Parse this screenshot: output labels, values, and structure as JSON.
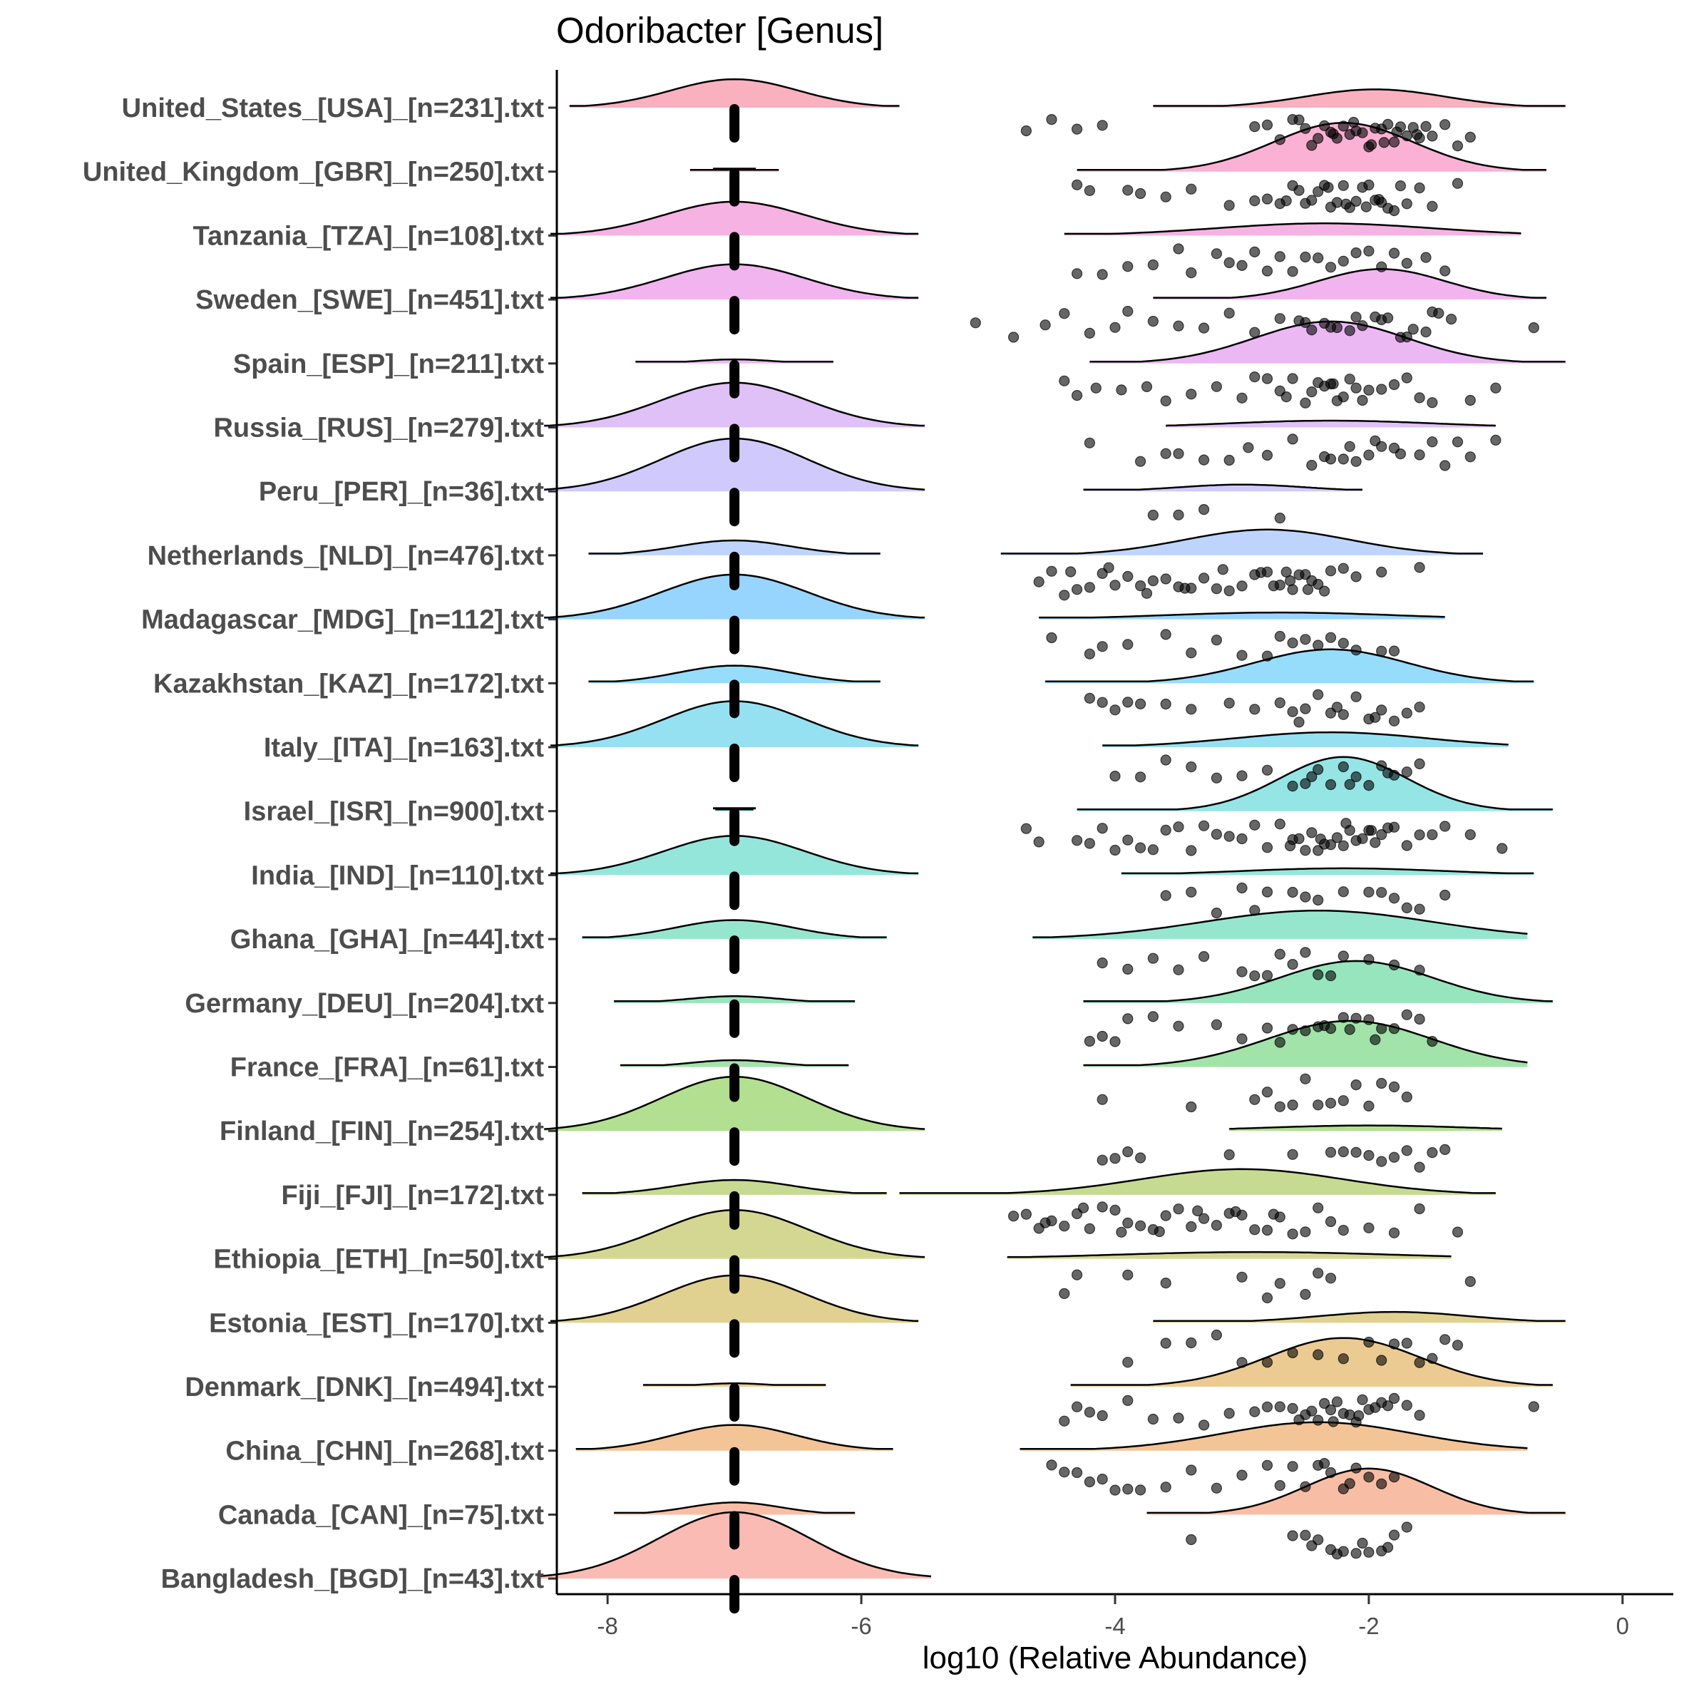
{
  "chart_data": {
    "type": "raincloud",
    "title": "Odoribacter [Genus]",
    "xlabel": "log10 (Relative Abundance)",
    "ylabel": "",
    "xlim": [
      -8.4,
      0.4
    ],
    "xticks": [
      -8,
      -6,
      -4,
      -2,
      0
    ],
    "grid": false,
    "legend": "none",
    "categories": [
      "United_States_[USA]_[n=231].txt",
      "United_Kingdom_[GBR]_[n=250].txt",
      "Tanzania_[TZA]_[n=108].txt",
      "Sweden_[SWE]_[n=451].txt",
      "Spain_[ESP]_[n=211].txt",
      "Russia_[RUS]_[n=279].txt",
      "Peru_[PER]_[n=36].txt",
      "Netherlands_[NLD]_[n=476].txt",
      "Madagascar_[MDG]_[n=112].txt",
      "Kazakhstan_[KAZ]_[n=172].txt",
      "Italy_[ITA]_[n=163].txt",
      "Israel_[ISR]_[n=900].txt",
      "India_[IND]_[n=110].txt",
      "Ghana_[GHA]_[n=44].txt",
      "Germany_[DEU]_[n=204].txt",
      "France_[FRA]_[n=61].txt",
      "Finland_[FIN]_[n=254].txt",
      "Fiji_[FJI]_[n=172].txt",
      "Ethiopia_[ETH]_[n=50].txt",
      "Estonia_[EST]_[n=170].txt",
      "Denmark_[DNK]_[n=494].txt",
      "China_[CHN]_[n=268].txt",
      "Canada_[CAN]_[n=75].txt",
      "Bangladesh_[BGD]_[n=43].txt"
    ],
    "colors": [
      "#F8A2B4",
      "#F9A3CC",
      "#F4A5DE",
      "#EEA7EC",
      "#E7ABF2",
      "#D9B5F6",
      "#C8C1FB",
      "#B4CDFC",
      "#86CEFE",
      "#84D6FA",
      "#83DCEE",
      "#83E0E0",
      "#83E2D4",
      "#84E2C4",
      "#84E1B2",
      "#90DE9A",
      "#A6D97E",
      "#BCD47E",
      "#CDD07E",
      "#DAC97E",
      "#E7C27E",
      "#F0BA84",
      "#F7B395",
      "#F8AFA6"
    ],
    "series": [
      {
        "zero_density_height": 0.42,
        "zero_density_halfwidth": 1.3,
        "nonzero_mean": -1.95,
        "nonzero_sd": 0.55,
        "nonzero_range": [
          -3.7,
          -0.45
        ],
        "nonzero_density_height": 0.27,
        "points": [
          -4.7,
          -4.5,
          -4.3,
          -4.1,
          -2.9,
          -2.8,
          -2.7,
          -2.6,
          -2.55,
          -2.5,
          -2.4,
          -2.35,
          -2.3,
          -2.25,
          -2.2,
          -2.15,
          -2.1,
          -2.05,
          -2.0,
          -1.95,
          -1.9,
          -1.85,
          -1.8,
          -1.75,
          -1.7,
          -1.65,
          -1.6,
          -1.5,
          -1.4,
          -1.3,
          -1.2,
          -2.45,
          -2.28,
          -2.12,
          -1.98,
          -1.88,
          -1.78,
          -1.62,
          -1.55
        ]
      },
      {
        "zero_density_height": 0.0,
        "zero_density_halfwidth": 0.35,
        "nonzero_mean": -2.2,
        "nonzero_sd": 0.55,
        "nonzero_range": [
          -4.3,
          -0.6
        ],
        "nonzero_density_height": 0.72,
        "points": [
          -4.3,
          -4.2,
          -3.9,
          -3.8,
          -3.6,
          -3.4,
          -3.1,
          -2.9,
          -2.8,
          -2.7,
          -2.6,
          -2.5,
          -2.45,
          -2.4,
          -2.35,
          -2.3,
          -2.25,
          -2.2,
          -2.15,
          -2.1,
          -2.05,
          -2.0,
          -1.95,
          -1.9,
          -1.85,
          -1.8,
          -1.75,
          -1.7,
          -1.6,
          -1.5,
          -1.3,
          -2.65,
          -2.55,
          -2.32,
          -2.18,
          -2.02,
          -1.92
        ]
      },
      {
        "zero_density_height": 0.5,
        "zero_density_halfwidth": 1.45,
        "nonzero_mean": -2.35,
        "nonzero_sd": 0.85,
        "nonzero_range": [
          -4.4,
          -0.8
        ],
        "nonzero_density_height": 0.18,
        "points": [
          -4.3,
          -4.1,
          -3.9,
          -3.7,
          -3.5,
          -3.4,
          -3.2,
          -3.1,
          -3.0,
          -2.9,
          -2.8,
          -2.7,
          -2.6,
          -2.5,
          -2.4,
          -2.3,
          -2.2,
          -2.1,
          -2.0,
          -1.9,
          -1.8,
          -1.7,
          -1.55,
          -1.4
        ]
      },
      {
        "zero_density_height": 0.52,
        "zero_density_halfwidth": 1.45,
        "nonzero_mean": -1.9,
        "nonzero_sd": 0.5,
        "nonzero_range": [
          -3.7,
          -0.6
        ],
        "nonzero_density_height": 0.45,
        "points": [
          -5.1,
          -4.8,
          -4.55,
          -4.4,
          -4.2,
          -4.0,
          -3.9,
          -3.7,
          -3.5,
          -3.3,
          -3.1,
          -2.9,
          -2.7,
          -2.55,
          -2.45,
          -2.35,
          -2.25,
          -2.15,
          -2.05,
          -1.95,
          -1.85,
          -1.75,
          -1.65,
          -1.55,
          -1.45,
          -1.35,
          -0.7,
          -2.5,
          -2.3,
          -2.1,
          -1.9,
          -1.7,
          -1.5
        ]
      },
      {
        "zero_density_height": 0.06,
        "zero_density_halfwidth": 0.78,
        "nonzero_mean": -2.3,
        "nonzero_sd": 0.6,
        "nonzero_range": [
          -4.2,
          -0.45
        ],
        "nonzero_density_height": 0.62,
        "points": [
          -4.4,
          -4.3,
          -4.15,
          -3.95,
          -3.75,
          -3.6,
          -3.4,
          -3.2,
          -3.0,
          -2.9,
          -2.8,
          -2.7,
          -2.6,
          -2.5,
          -2.45,
          -2.4,
          -2.35,
          -2.3,
          -2.25,
          -2.2,
          -2.15,
          -2.1,
          -2.0,
          -1.9,
          -1.8,
          -1.7,
          -1.6,
          -1.5,
          -1.2,
          -1.0,
          -2.65,
          -2.28,
          -2.05
        ]
      },
      {
        "zero_density_height": 0.66,
        "zero_density_halfwidth": 1.5,
        "nonzero_mean": -2.3,
        "nonzero_sd": 0.8,
        "nonzero_range": [
          -3.6,
          -1.0
        ],
        "nonzero_density_height": 0.1,
        "points": [
          -4.2,
          -3.8,
          -3.6,
          -3.5,
          -3.3,
          -3.1,
          -2.95,
          -2.8,
          -2.6,
          -2.45,
          -2.3,
          -2.2,
          -2.1,
          -2.0,
          -1.9,
          -1.8,
          -1.6,
          -1.5,
          -1.4,
          -1.3,
          -1.2,
          -1.0,
          -2.35,
          -2.15,
          -1.95,
          -1.75
        ]
      },
      {
        "zero_density_height": 0.78,
        "zero_density_halfwidth": 1.5,
        "nonzero_mean": -3.0,
        "nonzero_sd": 0.5,
        "nonzero_range": [
          -4.25,
          -2.05
        ],
        "nonzero_density_height": 0.1,
        "points": [
          -3.7,
          -3.5,
          -3.3,
          -2.7
        ]
      },
      {
        "zero_density_height": 0.22,
        "zero_density_halfwidth": 1.15,
        "nonzero_mean": -2.8,
        "nonzero_sd": 0.65,
        "nonzero_range": [
          -4.9,
          -1.1
        ],
        "nonzero_density_height": 0.38,
        "points": [
          -4.6,
          -4.5,
          -4.4,
          -4.3,
          -4.2,
          -4.1,
          -4.0,
          -3.9,
          -3.8,
          -3.7,
          -3.6,
          -3.5,
          -3.4,
          -3.3,
          -3.2,
          -3.1,
          -3.0,
          -2.9,
          -2.8,
          -2.75,
          -2.7,
          -2.65,
          -2.6,
          -2.55,
          -2.5,
          -2.45,
          -2.4,
          -2.35,
          -2.3,
          -2.2,
          -2.1,
          -1.9,
          -1.6,
          -4.35,
          -4.05,
          -3.75,
          -3.45,
          -3.15,
          -2.85,
          -2.62,
          -2.48
        ]
      },
      {
        "zero_density_height": 0.66,
        "zero_density_halfwidth": 1.5,
        "nonzero_mean": -2.7,
        "nonzero_sd": 0.9,
        "nonzero_range": [
          -4.6,
          -1.4
        ],
        "nonzero_density_height": 0.1,
        "points": [
          -4.5,
          -4.2,
          -4.1,
          -3.9,
          -3.6,
          -3.4,
          -3.2,
          -3.0,
          -2.8,
          -2.7,
          -2.6,
          -2.5,
          -2.4,
          -2.3,
          -2.2,
          -2.1,
          -1.9,
          -1.8
        ]
      },
      {
        "zero_density_height": 0.26,
        "zero_density_halfwidth": 1.15,
        "nonzero_mean": -2.3,
        "nonzero_sd": 0.6,
        "nonzero_range": [
          -4.55,
          -0.7
        ],
        "nonzero_density_height": 0.5,
        "points": [
          -4.2,
          -4.1,
          -4.0,
          -3.9,
          -3.8,
          -3.6,
          -3.4,
          -3.1,
          -2.9,
          -2.7,
          -2.6,
          -2.5,
          -2.4,
          -2.3,
          -2.2,
          -2.1,
          -2.0,
          -1.9,
          -1.8,
          -1.7,
          -1.6,
          -2.55,
          -2.25,
          -1.95
        ]
      },
      {
        "zero_density_height": 0.68,
        "zero_density_halfwidth": 1.45,
        "nonzero_mean": -2.3,
        "nonzero_sd": 0.75,
        "nonzero_range": [
          -4.1,
          -0.9
        ],
        "nonzero_density_height": 0.22,
        "points": [
          -4.0,
          -3.8,
          -3.6,
          -3.4,
          -3.2,
          -3.0,
          -2.8,
          -2.6,
          -2.5,
          -2.4,
          -2.3,
          -2.2,
          -2.1,
          -2.0,
          -1.9,
          -1.8,
          -1.7,
          -1.6,
          -2.45,
          -2.15,
          -1.85
        ]
      },
      {
        "zero_density_height": 0.0,
        "zero_density_halfwidth": 0.15,
        "nonzero_mean": -2.2,
        "nonzero_sd": 0.5,
        "nonzero_range": [
          -4.3,
          -0.55
        ],
        "nonzero_density_height": 0.8,
        "points": [
          -4.7,
          -4.6,
          -4.3,
          -4.2,
          -4.1,
          -4.0,
          -3.9,
          -3.8,
          -3.7,
          -3.6,
          -3.5,
          -3.4,
          -3.3,
          -3.2,
          -3.1,
          -3.0,
          -2.9,
          -2.8,
          -2.7,
          -2.6,
          -2.55,
          -2.5,
          -2.45,
          -2.4,
          -2.35,
          -2.3,
          -2.25,
          -2.2,
          -2.15,
          -2.1,
          -2.05,
          -2.0,
          -1.95,
          -1.9,
          -1.85,
          -1.8,
          -1.7,
          -1.6,
          -1.5,
          -1.4,
          -1.2,
          -0.95,
          -2.62,
          -2.38,
          -2.18,
          -1.98
        ]
      },
      {
        "zero_density_height": 0.58,
        "zero_density_halfwidth": 1.45,
        "nonzero_mean": -2.2,
        "nonzero_sd": 0.8,
        "nonzero_range": [
          -3.95,
          -0.7
        ],
        "nonzero_density_height": 0.1,
        "points": [
          -3.6,
          -3.4,
          -3.2,
          -3.0,
          -2.9,
          -2.8,
          -2.6,
          -2.5,
          -2.4,
          -2.2,
          -2.0,
          -1.9,
          -1.8,
          -1.7,
          -1.6,
          -1.4
        ]
      },
      {
        "zero_density_height": 0.28,
        "zero_density_halfwidth": 1.2,
        "nonzero_mean": -2.4,
        "nonzero_sd": 0.9,
        "nonzero_range": [
          -4.65,
          -0.75
        ],
        "nonzero_density_height": 0.42,
        "points": [
          -4.1,
          -3.9,
          -3.7,
          -3.5,
          -3.3,
          -3.0,
          -2.9,
          -2.8,
          -2.7,
          -2.6,
          -2.5,
          -2.4,
          -2.3,
          -2.2,
          -2.0,
          -1.8,
          -1.6
        ]
      },
      {
        "zero_density_height": 0.1,
        "zero_density_halfwidth": 0.95,
        "nonzero_mean": -2.1,
        "nonzero_sd": 0.6,
        "nonzero_range": [
          -4.25,
          -0.55
        ],
        "nonzero_density_height": 0.62,
        "points": [
          -4.2,
          -4.1,
          -4.0,
          -3.9,
          -3.7,
          -3.5,
          -3.2,
          -3.0,
          -2.8,
          -2.7,
          -2.6,
          -2.5,
          -2.4,
          -2.3,
          -2.2,
          -2.1,
          -2.0,
          -1.9,
          -1.8,
          -1.7,
          -1.6,
          -1.5,
          -2.35,
          -2.15,
          -1.95
        ]
      },
      {
        "zero_density_height": 0.1,
        "zero_density_halfwidth": 0.9,
        "nonzero_mean": -2.15,
        "nonzero_sd": 0.65,
        "nonzero_range": [
          -4.25,
          -0.75
        ],
        "nonzero_density_height": 0.68,
        "points": [
          -4.1,
          -3.4,
          -2.9,
          -2.8,
          -2.7,
          -2.6,
          -2.5,
          -2.4,
          -2.3,
          -2.2,
          -2.1,
          -2.0,
          -1.9,
          -1.8,
          -1.7
        ]
      },
      {
        "zero_density_height": 0.8,
        "zero_density_halfwidth": 1.5,
        "nonzero_mean": -2.0,
        "nonzero_sd": 0.8,
        "nonzero_range": [
          -3.1,
          -0.95
        ],
        "nonzero_density_height": 0.08,
        "points": [
          -4.1,
          -4.0,
          -3.9,
          -3.8,
          -3.1,
          -2.6,
          -2.3,
          -2.2,
          -2.1,
          -2.0,
          -1.9,
          -1.8,
          -1.7,
          -1.6,
          -1.5,
          -1.4
        ]
      },
      {
        "zero_density_height": 0.22,
        "zero_density_halfwidth": 1.2,
        "nonzero_mean": -3.0,
        "nonzero_sd": 0.8,
        "nonzero_range": [
          -5.7,
          -1.0
        ],
        "nonzero_density_height": 0.38,
        "points": [
          -4.8,
          -4.7,
          -4.6,
          -4.5,
          -4.4,
          -4.3,
          -4.2,
          -4.1,
          -4.0,
          -3.9,
          -3.8,
          -3.7,
          -3.6,
          -3.5,
          -3.4,
          -3.3,
          -3.2,
          -3.1,
          -3.0,
          -2.9,
          -2.8,
          -2.7,
          -2.6,
          -2.5,
          -2.4,
          -2.3,
          -2.2,
          -2.0,
          -1.8,
          -1.6,
          -1.3,
          -4.55,
          -4.25,
          -3.95,
          -3.65,
          -3.35,
          -3.05,
          -2.75
        ]
      },
      {
        "zero_density_height": 0.72,
        "zero_density_halfwidth": 1.5,
        "nonzero_mean": -2.9,
        "nonzero_sd": 1.1,
        "nonzero_range": [
          -4.85,
          -1.35
        ],
        "nonzero_density_height": 0.1,
        "points": [
          -4.4,
          -4.3,
          -3.9,
          -3.6,
          -3.0,
          -2.8,
          -2.7,
          -2.5,
          -2.4,
          -2.3,
          -1.2
        ]
      },
      {
        "zero_density_height": 0.7,
        "zero_density_halfwidth": 1.45,
        "nonzero_mean": -1.8,
        "nonzero_sd": 0.6,
        "nonzero_range": [
          -3.7,
          -0.45
        ],
        "nonzero_density_height": 0.16,
        "points": [
          -3.9,
          -3.6,
          -3.4,
          -3.2,
          -3.0,
          -2.8,
          -2.6,
          -2.4,
          -2.2,
          -2.0,
          -1.9,
          -1.8,
          -1.7,
          -1.6,
          -1.5,
          -1.4,
          -1.3
        ]
      },
      {
        "zero_density_height": 0.05,
        "zero_density_halfwidth": 0.72,
        "nonzero_mean": -2.2,
        "nonzero_sd": 0.6,
        "nonzero_range": [
          -4.35,
          -0.55
        ],
        "nonzero_density_height": 0.72,
        "points": [
          -4.4,
          -4.3,
          -4.2,
          -4.1,
          -3.9,
          -3.7,
          -3.5,
          -3.3,
          -3.1,
          -2.9,
          -2.8,
          -2.7,
          -2.6,
          -2.5,
          -2.45,
          -2.4,
          -2.35,
          -2.3,
          -2.25,
          -2.2,
          -2.15,
          -2.1,
          -2.05,
          -2.0,
          -1.95,
          -1.9,
          -1.85,
          -1.8,
          -1.7,
          -1.6,
          -0.7,
          -2.55,
          -2.28,
          -2.08
        ]
      },
      {
        "zero_density_height": 0.38,
        "zero_density_halfwidth": 1.25,
        "nonzero_mean": -2.4,
        "nonzero_sd": 0.75,
        "nonzero_range": [
          -4.75,
          -0.75
        ],
        "nonzero_density_height": 0.42,
        "points": [
          -4.5,
          -4.4,
          -4.3,
          -4.2,
          -4.1,
          -4.0,
          -3.9,
          -3.8,
          -3.6,
          -3.4,
          -3.2,
          -3.0,
          -2.8,
          -2.7,
          -2.6,
          -2.5,
          -2.4,
          -2.3,
          -2.2,
          -2.1,
          -2.0,
          -1.9,
          -1.8,
          -2.35,
          -2.15
        ]
      },
      {
        "zero_density_height": 0.18,
        "zero_density_halfwidth": 0.95,
        "nonzero_mean": -2.0,
        "nonzero_sd": 0.5,
        "nonzero_range": [
          -3.75,
          -0.45
        ],
        "nonzero_density_height": 0.68,
        "points": [
          -3.4,
          -2.6,
          -2.5,
          -2.4,
          -2.3,
          -2.2,
          -2.1,
          -2.0,
          -1.9,
          -1.8,
          -1.7,
          -2.45,
          -2.25,
          -2.05,
          -1.85
        ]
      },
      {
        "zero_density_height": 0.98,
        "zero_density_halfwidth": 1.55,
        "nonzero_mean": -2.0,
        "nonzero_sd": 0.5,
        "nonzero_range": [
          -2.0,
          -2.0
        ],
        "nonzero_density_height": 0.0,
        "points": []
      }
    ]
  }
}
